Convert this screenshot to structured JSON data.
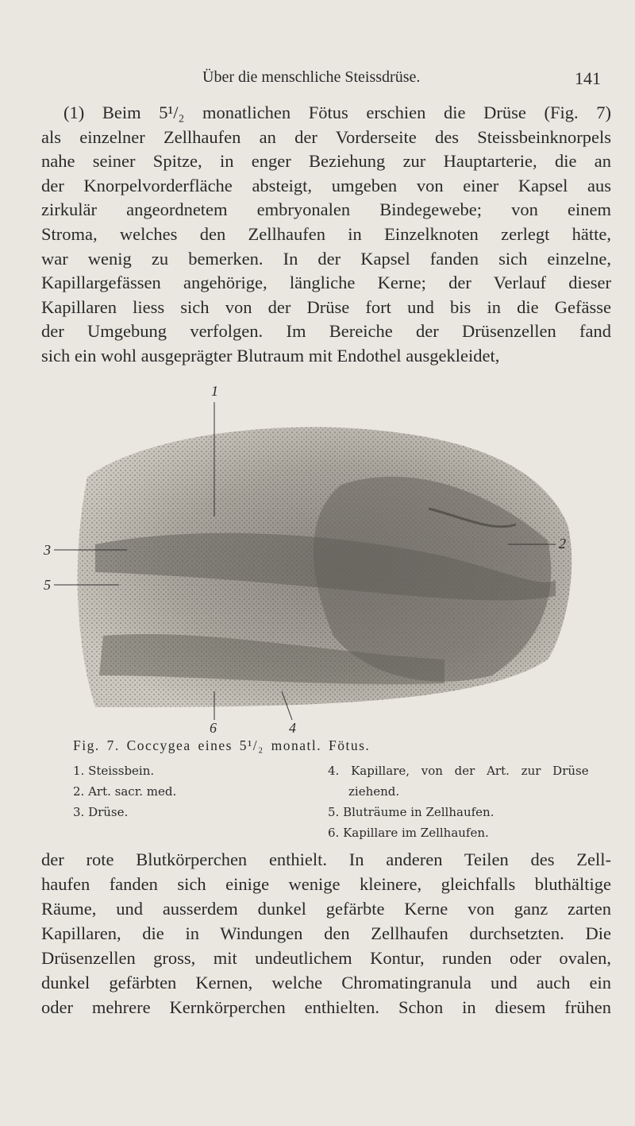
{
  "header": {
    "title": "Über die menschliche Steissdrüse.",
    "page_number": "141"
  },
  "paragraphs": [
    {
      "lines": [
        "(1) Beim 5¹/₂ monatlichen Fötus erschien die Drüse (Fig. 7)",
        "als einzelner Zellhaufen an der Vorderseite des Steissbeinknorpels",
        "nahe seiner Spitze, in enger Beziehung zur Hauptarterie, die an",
        "der Knorpelvorderfläche absteigt, umgeben von einer Kapsel aus",
        "zirkulär angeordnetem embryonalen Bindegewebe; von einem",
        "Stroma, welches den Zellhaufen in Einzelknoten zerlegt hätte,",
        "war wenig zu bemerken. In der Kapsel fanden sich einzelne,",
        "Kapillargefässen angehörige, längliche Kerne; der Verlauf dieser",
        "Kapillaren liess sich von der Drüse fort und bis in die Gefässe",
        "der Umgebung verfolgen. Im Bereiche der Drüsenzellen fand",
        "sich ein wohl ausgeprägter Blutraum mit Endothel ausgekleidet,"
      ]
    },
    {
      "lines": [
        "der rote Blutkörperchen enthielt. In anderen Teilen des Zell-",
        "haufen fanden sich einige wenige kleinere, gleichfalls bluthältige",
        "Räume, und ausserdem dunkel gefärbte Kerne von ganz zarten",
        "Kapillaren, die in Windungen den Zellhaufen durchsetzten. Die",
        "Drüsenzellen gross, mit undeutlichem Kontur, runden oder ovalen,",
        "dunkel gefärbten Kernen, welche Chromatingranula und auch ein",
        "oder mehrere Kernkörperchen enthielten. Schon in diesem frühen"
      ]
    }
  ],
  "figure": {
    "labels": [
      "1",
      "2",
      "3",
      "5",
      "6",
      "4"
    ],
    "caption": "Fig. 7. Coccygea eines 5¹/₂ monatl. Fötus.",
    "legend": [
      "1. Steissbein.",
      "2. Art. sacr. med.",
      "3. Drüse.",
      "4. Kapillare, von der Art. zur Drüse ziehend.",
      "5. Bluträume in Zellhaufen.",
      "6. Kapillare im Zellhaufen."
    ]
  }
}
